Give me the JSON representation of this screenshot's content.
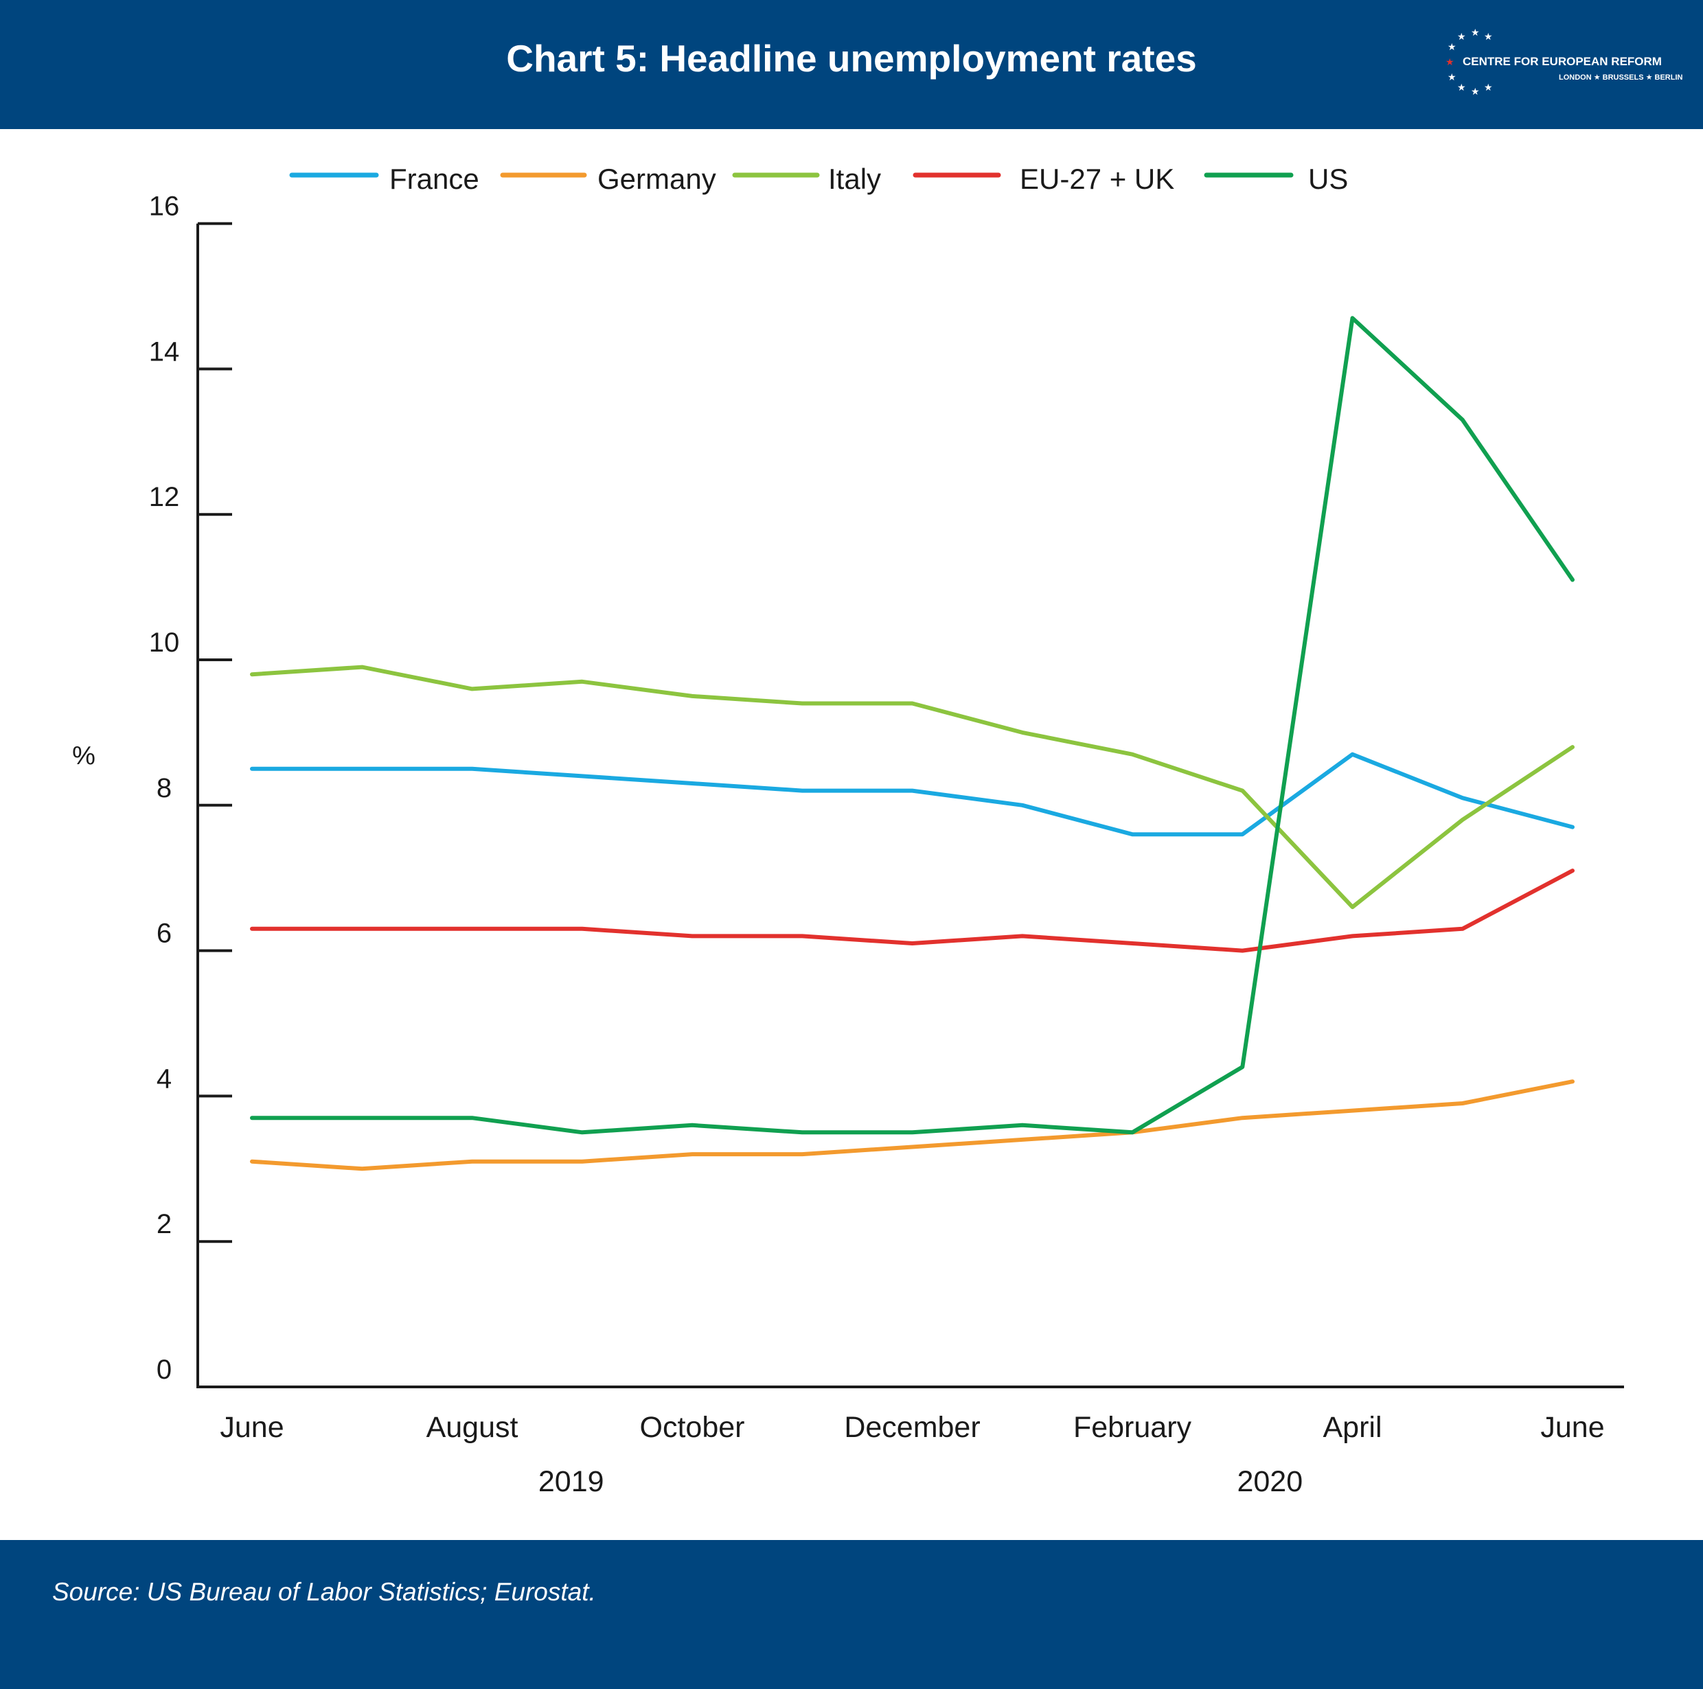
{
  "header": {
    "title": "Chart 5: Headline unemployment rates",
    "logo_name": "CENTRE FOR EUROPEAN REFORM",
    "logo_cities": "LONDON ★ BRUSSELS ★ BERLIN"
  },
  "footer": {
    "source": "Source: US Bureau of Labor Statistics; Eurostat."
  },
  "colors": {
    "banner": "#00457e",
    "france": "#1aa9e1",
    "germany": "#f39a2e",
    "italy": "#8cc43f",
    "eu": "#e2312d",
    "us": "#10a050"
  },
  "chart_data": {
    "type": "line",
    "ylabel": "%",
    "ylim": [
      0,
      16
    ],
    "yticks": [
      "0",
      "2",
      "4",
      "6",
      "8",
      "10",
      "12",
      "14",
      "16"
    ],
    "x": [
      "2019-06",
      "2019-07",
      "2019-08",
      "2019-09",
      "2019-10",
      "2019-11",
      "2019-12",
      "2020-01",
      "2020-02",
      "2020-03",
      "2020-04",
      "2020-05",
      "2020-06"
    ],
    "x_tick_labels": [
      {
        "x": "2019-06",
        "label": "June"
      },
      {
        "x": "2019-08",
        "label": "August"
      },
      {
        "x": "2019-10",
        "label": "October"
      },
      {
        "x": "2019-12",
        "label": "December"
      },
      {
        "x": "2020-02",
        "label": "February"
      },
      {
        "x": "2020-04",
        "label": "April"
      },
      {
        "x": "2020-06",
        "label": "June"
      }
    ],
    "year_labels": [
      {
        "label": "2019",
        "x_index": 2.9
      },
      {
        "label": "2020",
        "x_index": 9.25
      }
    ],
    "legend_position": "top",
    "grid": false,
    "series": [
      {
        "name": "France",
        "color": "#1aa9e1",
        "values": [
          8.5,
          8.5,
          8.5,
          8.4,
          8.3,
          8.2,
          8.2,
          8.0,
          7.6,
          7.6,
          8.7,
          8.1,
          7.7
        ]
      },
      {
        "name": "Germany",
        "color": "#f39a2e",
        "values": [
          3.1,
          3.0,
          3.1,
          3.1,
          3.2,
          3.2,
          3.3,
          3.4,
          3.5,
          3.7,
          3.8,
          3.9,
          4.2
        ]
      },
      {
        "name": "Italy",
        "color": "#8cc43f",
        "values": [
          9.8,
          9.9,
          9.6,
          9.7,
          9.5,
          9.4,
          9.4,
          9.0,
          8.7,
          8.2,
          6.6,
          7.8,
          8.8
        ]
      },
      {
        "name": "EU-27 + UK",
        "color": "#e2312d",
        "values": [
          6.3,
          6.3,
          6.3,
          6.3,
          6.2,
          6.2,
          6.1,
          6.2,
          6.1,
          6.0,
          6.2,
          6.3,
          7.1
        ]
      },
      {
        "name": "US",
        "color": "#10a050",
        "values": [
          3.7,
          3.7,
          3.7,
          3.5,
          3.6,
          3.5,
          3.5,
          3.6,
          3.5,
          4.4,
          14.7,
          13.3,
          11.1
        ]
      }
    ]
  }
}
